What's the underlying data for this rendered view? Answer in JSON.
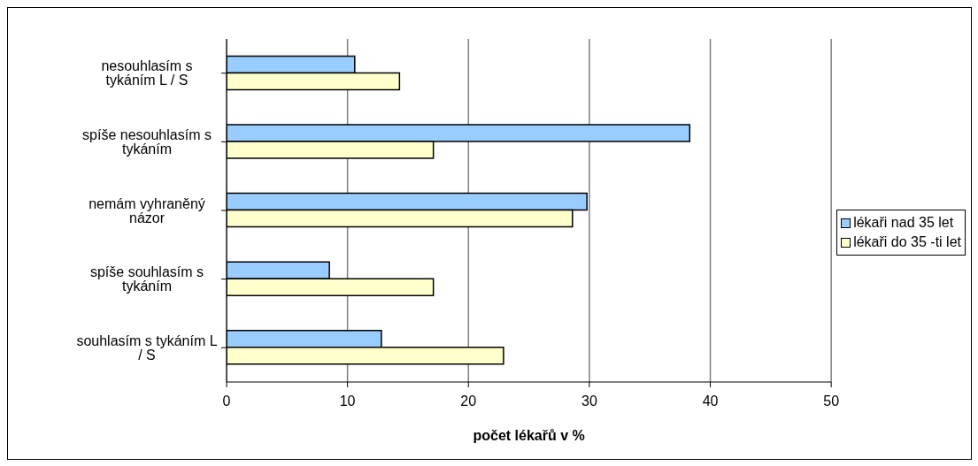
{
  "chart_data": {
    "type": "bar",
    "orientation": "horizontal",
    "xlabel": "počet lékařů v %",
    "categories": [
      "nesouhlasím s tykáním L / S",
      "spíše nesouhlasím s tykáním",
      "nemám vyhraněný názor",
      "spíše souhlasím s tykáním",
      "souhlasím s tykáním L / S"
    ],
    "series": [
      {
        "name": "lékaři nad 35 let",
        "color": "#99ccff",
        "values": [
          10.6,
          38.3,
          29.8,
          8.5,
          12.8
        ]
      },
      {
        "name": "lékaři do 35 -ti let",
        "color": "#ffffcc",
        "values": [
          14.3,
          17.1,
          28.6,
          17.1,
          22.9
        ]
      }
    ],
    "xlim": [
      0,
      50
    ],
    "xticks": [
      0,
      10,
      20,
      30,
      40,
      50
    ],
    "grid": "x",
    "legend": "right"
  }
}
